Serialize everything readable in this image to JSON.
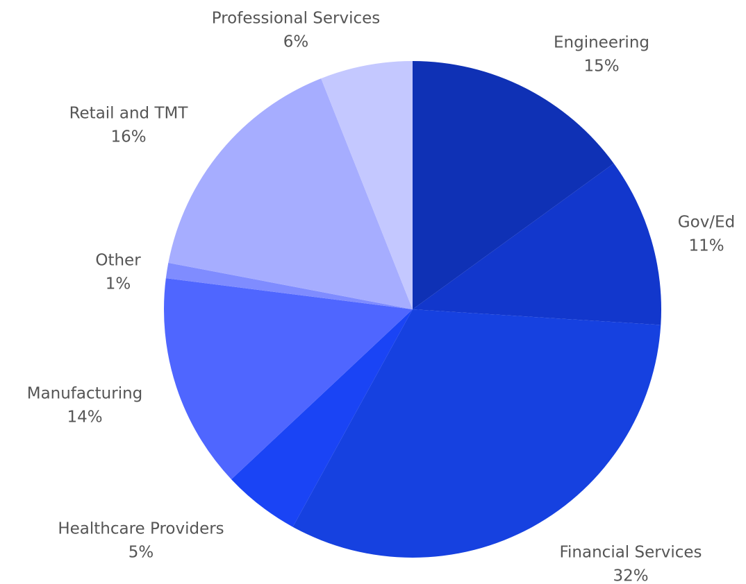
{
  "chart_data": {
    "type": "pie",
    "categories": [
      "Engineering",
      "Gov/Ed",
      "Financial Services",
      "Healthcare Providers",
      "Manufacturing",
      "Other",
      "Retail and TMT",
      "Professional Services"
    ],
    "values": [
      15,
      11,
      32,
      5,
      14,
      1,
      16,
      6
    ],
    "value_labels": [
      "15%",
      "11%",
      "32%",
      "5%",
      "14%",
      "1%",
      "16%",
      "6%"
    ],
    "colors": [
      "#0f31b5",
      "#1237cc",
      "#1641e0",
      "#1a44f5",
      "#4f66ff",
      "#7f8cff",
      "#a6adff",
      "#c4c8ff"
    ]
  }
}
